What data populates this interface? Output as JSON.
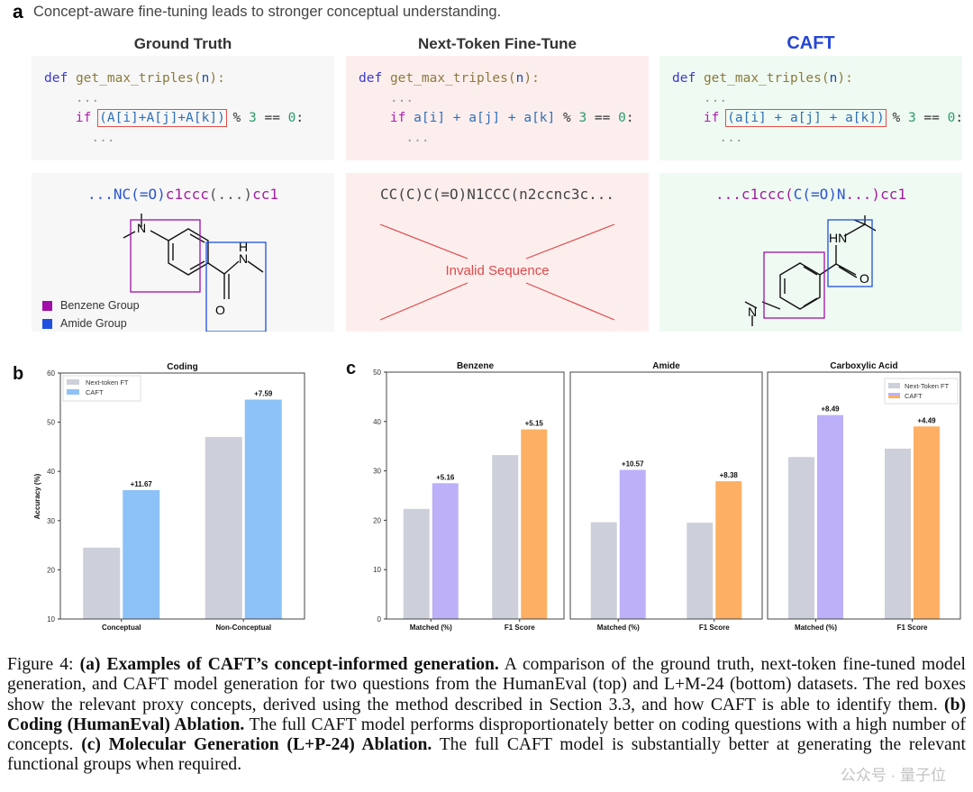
{
  "panel_a": {
    "label": "a",
    "subtitle": "Concept-aware fine-tuning leads to stronger conceptual understanding.",
    "columns": [
      {
        "title": "Ground Truth",
        "title_color": "#333333",
        "bg": "#f7f7f7",
        "code": {
          "def": "def",
          "fn": "get_max_triples",
          "arg": "n",
          "dots": "...",
          "if": "if",
          "expr": "(A[i]+A[j]+A[k])",
          "rest_pre": " % ",
          "three": "3",
          "eq": " == ",
          "zero": "0",
          "colon": ":"
        },
        "smiles": [
          {
            "t": "...NC(=O)",
            "c": "#2a55d0"
          },
          {
            "t": "c1ccc",
            "c": "#a020a0"
          },
          {
            "t": "(...)",
            "c": "#555555"
          },
          {
            "t": "cc1",
            "c": "#a020a0"
          }
        ]
      },
      {
        "title": "Next-Token Fine-Tune",
        "title_color": "#333333",
        "bg": "#fdeeee",
        "code": {
          "def": "def",
          "fn": "get_max_triples",
          "arg": "n",
          "dots": "...",
          "if": "if",
          "expr": "a[i] + a[j] + a[k]",
          "rest_pre": " % ",
          "three": "3",
          "eq": " == ",
          "zero": "0",
          "colon": ":"
        },
        "smiles": [
          {
            "t": "CC(C)C(=O)N1CCC(n2ccnc3c...",
            "c": "#444444"
          }
        ],
        "invalid_label": "Invalid Sequence"
      },
      {
        "title": "CAFT",
        "title_color": "#2446d6",
        "bg": "#effaf2",
        "code": {
          "def": "def",
          "fn": "get_max_triples",
          "arg": "n",
          "dots": "...",
          "if": "if",
          "expr": "(a[i] + a[j] + a[k])",
          "rest_pre": " % ",
          "three": "3",
          "eq": " == ",
          "zero": "0",
          "colon": ":"
        },
        "smiles": [
          {
            "t": "...c1ccc(",
            "c": "#a020a0"
          },
          {
            "t": "C(=O)N",
            "c": "#2a55d0"
          },
          {
            "t": "...)cc1",
            "c": "#a020a0"
          }
        ]
      }
    ],
    "atoms": {
      "N": "N",
      "H": "H",
      "O": "O",
      "HN": "HN"
    },
    "legend": [
      {
        "label": "Benzene Group",
        "color": "#a010a8"
      },
      {
        "label": "Amide Group",
        "color": "#1f50e0"
      }
    ],
    "highlight_color": "#e0504a"
  },
  "chart_data": [
    {
      "panel_label": "b",
      "type": "bar",
      "title": "Coding",
      "ylabel": "Accuracy (%)",
      "categories": [
        "Conceptual",
        "Non-Conceptual"
      ],
      "ylim": [
        10,
        60
      ],
      "yticks": [
        10,
        20,
        30,
        40,
        50,
        60
      ],
      "series": [
        {
          "name": "Next-token FT",
          "color": "#cdd0da",
          "values": [
            24.5,
            47.0
          ]
        },
        {
          "name": "CAFT",
          "color": "#8cc2f8",
          "values": [
            36.2,
            54.6
          ]
        }
      ],
      "annotations": [
        "+11.67",
        "+7.59"
      ],
      "legend": "top-left",
      "grid": false
    },
    {
      "panel_label": "c",
      "type": "bar",
      "panels": [
        {
          "title": "Benzene",
          "categories": [
            "Matched (%)",
            "F1 Score"
          ],
          "next_token": [
            22.3,
            33.2
          ],
          "caft": [
            27.5,
            38.4
          ],
          "annotations": [
            "+5.16",
            "+5.15"
          ]
        },
        {
          "title": "Amide",
          "categories": [
            "Matched (%)",
            "F1 Score"
          ],
          "next_token": [
            19.6,
            19.5
          ],
          "caft": [
            30.2,
            27.9
          ],
          "annotations": [
            "+10.57",
            "+8.38"
          ]
        },
        {
          "title": "Carboxylic Acid",
          "categories": [
            "Matched (%)",
            "F1 Score"
          ],
          "next_token": [
            32.8,
            34.5
          ],
          "caft": [
            41.3,
            39.0
          ],
          "annotations": [
            "+8.49",
            "+4.49"
          ]
        }
      ],
      "ylim": [
        0,
        50
      ],
      "yticks": [
        0,
        10,
        20,
        30,
        40,
        50
      ],
      "legend_entries": [
        "Next-Token FT",
        "CAFT"
      ],
      "colors": {
        "next_token": "#cdd0da",
        "caft_matched": "#bdb0f8",
        "caft_f1": "#fdb063"
      },
      "legend": "top-right",
      "grid": false
    }
  ],
  "caption": [
    {
      "t": "Figure 4: ",
      "b": false
    },
    {
      "t": "(a) Examples of CAFT’s concept-informed generation.",
      "b": true
    },
    {
      "t": " A comparison of the ground truth, next-token fine-tuned model generation, and CAFT model generation for two questions from the HumanEval (top) and L+M-24 (bottom) datasets. The red boxes show the relevant proxy concepts, derived using the method described in Section 3.3, and how CAFT is able to identify them. ",
      "b": false
    },
    {
      "t": "(b) Coding (HumanEval) Ablation.",
      "b": true
    },
    {
      "t": " The full CAFT model performs disproportionately better on coding questions with a high number of concepts. ",
      "b": false
    },
    {
      "t": "(c) Molecular Generation (L+P-24) Ablation.",
      "b": true
    },
    {
      "t": " The full CAFT model is substantially better at generating the relevant functional groups when required.",
      "b": false
    }
  ],
  "watermark": "公众号 · 量子位"
}
